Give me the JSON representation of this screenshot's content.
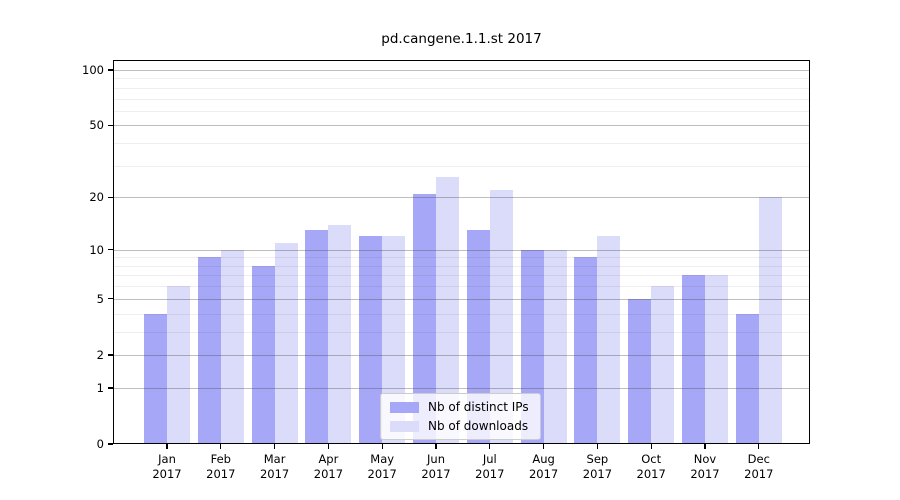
{
  "chart_data": {
    "type": "bar",
    "title": "pd.cangene.1.1.st 2017",
    "year_label": "2017",
    "categories": [
      "Jan",
      "Feb",
      "Mar",
      "Apr",
      "May",
      "Jun",
      "Jul",
      "Aug",
      "Sep",
      "Oct",
      "Nov",
      "Dec"
    ],
    "series": [
      {
        "name": "Nb of distinct IPs",
        "color": "#a7a7f7",
        "values": [
          4,
          9,
          8,
          13,
          12,
          21,
          13,
          10,
          9,
          5,
          7,
          4
        ]
      },
      {
        "name": "Nb of downloads",
        "color": "#dbdbfa",
        "values": [
          6,
          10,
          11,
          14,
          12,
          26,
          22,
          10,
          12,
          6,
          7,
          20
        ]
      }
    ],
    "yscale": "log1p",
    "ylim": [
      0,
      100
    ],
    "y_tick_labels": [
      100,
      50,
      20,
      10,
      5,
      2,
      1,
      0
    ],
    "y_major_gridlines": [
      1,
      2,
      5,
      10,
      20,
      50,
      100
    ],
    "y_minor_gridlines": [
      3,
      4,
      6,
      7,
      8,
      9,
      30,
      40,
      60,
      70,
      80,
      90
    ],
    "xlabel": "",
    "ylabel": "",
    "grid": true,
    "legend_position": "lower-center-inside"
  },
  "colors": {
    "background": "#ffffff",
    "axis": "#000000",
    "text": "#000000",
    "major_grid": "rgba(70,70,70,0.35)",
    "minor_grid": "rgba(70,70,70,0.09)",
    "legend_bg": "rgba(255,255,255,0.8)",
    "legend_border": "#cccccc",
    "bar_distinct_ips": "#a7a7f7",
    "bar_downloads": "#dbdbfa"
  }
}
